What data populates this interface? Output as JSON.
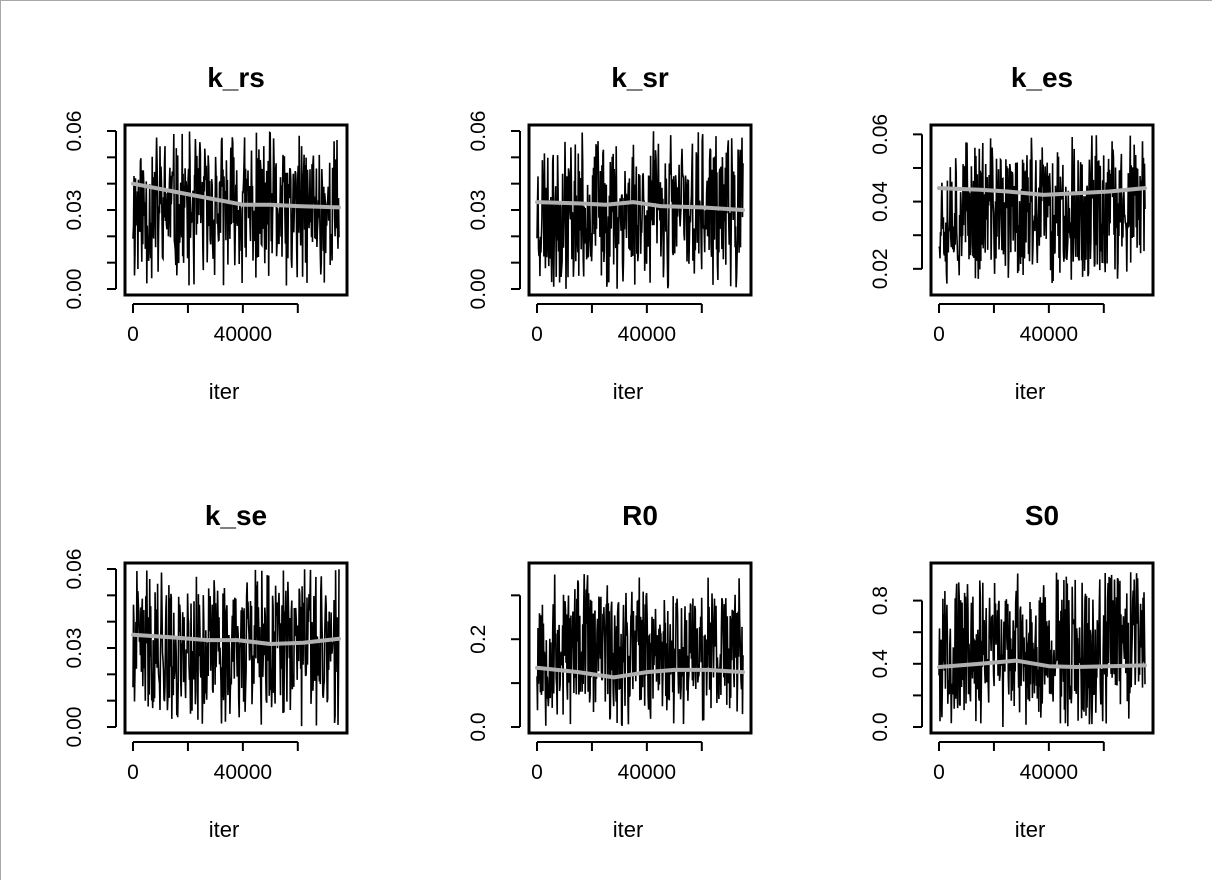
{
  "figure": {
    "rows": 2,
    "cols": 3,
    "colors": {
      "trace": "#000000",
      "smooth": "#b0b0b0",
      "frame": "#000000",
      "background": "#ffffff"
    }
  },
  "chart_data": [
    {
      "type": "line",
      "title": "k_rs",
      "xlabel": "iter",
      "ylabel": "",
      "xlim": [
        0,
        75000
      ],
      "ylim": [
        0,
        0.06
      ],
      "xticks": [
        0,
        20000,
        40000,
        60000
      ],
      "xtick_labels": [
        "0",
        "",
        "40000",
        ""
      ],
      "yticks": [
        0,
        0.01,
        0.02,
        0.03,
        0.04,
        0.05,
        0.06
      ],
      "ytick_labels": [
        "0.00",
        "",
        "",
        "0.03",
        "",
        "",
        "0.06"
      ],
      "trace": {
        "min": 0.0,
        "max": 0.06,
        "seed": 11
      },
      "smooth": {
        "x": [
          0,
          15000,
          30000,
          40000,
          50000,
          60000,
          75000
        ],
        "y": [
          0.04,
          0.037,
          0.034,
          0.032,
          0.032,
          0.0315,
          0.031
        ]
      }
    },
    {
      "type": "line",
      "title": "k_sr",
      "xlabel": "iter",
      "ylabel": "",
      "xlim": [
        0,
        75000
      ],
      "ylim": [
        0,
        0.06
      ],
      "xticks": [
        0,
        20000,
        40000,
        60000
      ],
      "xtick_labels": [
        "0",
        "",
        "40000",
        ""
      ],
      "yticks": [
        0,
        0.01,
        0.02,
        0.03,
        0.04,
        0.05,
        0.06
      ],
      "ytick_labels": [
        "0.00",
        "",
        "",
        "0.03",
        "",
        "",
        "0.06"
      ],
      "trace": {
        "min": 0.0,
        "max": 0.06,
        "seed": 23
      },
      "smooth": {
        "x": [
          0,
          15000,
          25000,
          35000,
          45000,
          60000,
          75000
        ],
        "y": [
          0.033,
          0.0325,
          0.032,
          0.033,
          0.0315,
          0.031,
          0.03
        ]
      }
    },
    {
      "type": "line",
      "title": "k_es",
      "xlabel": "iter",
      "ylabel": "",
      "xlim": [
        0,
        75000
      ],
      "ylim": [
        0.014,
        0.061
      ],
      "xticks": [
        0,
        20000,
        40000,
        60000
      ],
      "xtick_labels": [
        "0",
        "",
        "40000",
        ""
      ],
      "yticks": [
        0.02,
        0.03,
        0.04,
        0.05,
        0.06
      ],
      "ytick_labels": [
        "0.02",
        "",
        "0.04",
        "",
        "0.06"
      ],
      "trace": {
        "min": 0.015,
        "max": 0.06,
        "seed": 37
      },
      "smooth": {
        "x": [
          0,
          15000,
          25000,
          38000,
          50000,
          62000,
          75000
        ],
        "y": [
          0.044,
          0.0435,
          0.043,
          0.042,
          0.0425,
          0.043,
          0.044
        ]
      }
    },
    {
      "type": "line",
      "title": "k_se",
      "xlabel": "iter",
      "ylabel": "",
      "xlim": [
        0,
        75000
      ],
      "ylim": [
        0,
        0.06
      ],
      "xticks": [
        0,
        20000,
        40000,
        60000
      ],
      "xtick_labels": [
        "0",
        "",
        "40000",
        ""
      ],
      "yticks": [
        0,
        0.01,
        0.02,
        0.03,
        0.04,
        0.05,
        0.06
      ],
      "ytick_labels": [
        "0.00",
        "",
        "",
        "0.03",
        "",
        "",
        "0.06"
      ],
      "trace": {
        "min": 0.0,
        "max": 0.06,
        "seed": 41
      },
      "smooth": {
        "x": [
          0,
          15000,
          27000,
          38000,
          50000,
          62000,
          75000
        ],
        "y": [
          0.035,
          0.034,
          0.033,
          0.033,
          0.0315,
          0.032,
          0.0335
        ]
      }
    },
    {
      "type": "line",
      "title": "R0",
      "xlabel": "iter",
      "ylabel": "",
      "xlim": [
        0,
        75000
      ],
      "ylim": [
        0,
        0.36
      ],
      "xticks": [
        0,
        20000,
        40000,
        60000
      ],
      "xtick_labels": [
        "0",
        "",
        "40000",
        ""
      ],
      "yticks": [
        0,
        0.1,
        0.2,
        0.3
      ],
      "ytick_labels": [
        "0.0",
        "",
        "0.2",
        ""
      ],
      "trace": {
        "min": 0.0,
        "max": 0.35,
        "seed": 53
      },
      "smooth": {
        "x": [
          0,
          15000,
          28000,
          40000,
          50000,
          62000,
          75000
        ],
        "y": [
          0.135,
          0.125,
          0.113,
          0.125,
          0.13,
          0.13,
          0.125
        ]
      }
    },
    {
      "type": "line",
      "title": "S0",
      "xlabel": "iter",
      "ylabel": "",
      "xlim": [
        0,
        75000
      ],
      "ylim": [
        0,
        1.0
      ],
      "xticks": [
        0,
        20000,
        40000,
        60000
      ],
      "xtick_labels": [
        "0",
        "",
        "40000",
        ""
      ],
      "yticks": [
        0,
        0.2,
        0.4,
        0.6,
        0.8
      ],
      "ytick_labels": [
        "0.0",
        "",
        "0.4",
        "",
        "0.8"
      ],
      "trace": {
        "min": 0.0,
        "max": 0.98,
        "seed": 67
      },
      "smooth": {
        "x": [
          0,
          15000,
          28000,
          40000,
          50000,
          62000,
          75000
        ],
        "y": [
          0.38,
          0.4,
          0.42,
          0.385,
          0.38,
          0.385,
          0.39
        ]
      }
    }
  ]
}
